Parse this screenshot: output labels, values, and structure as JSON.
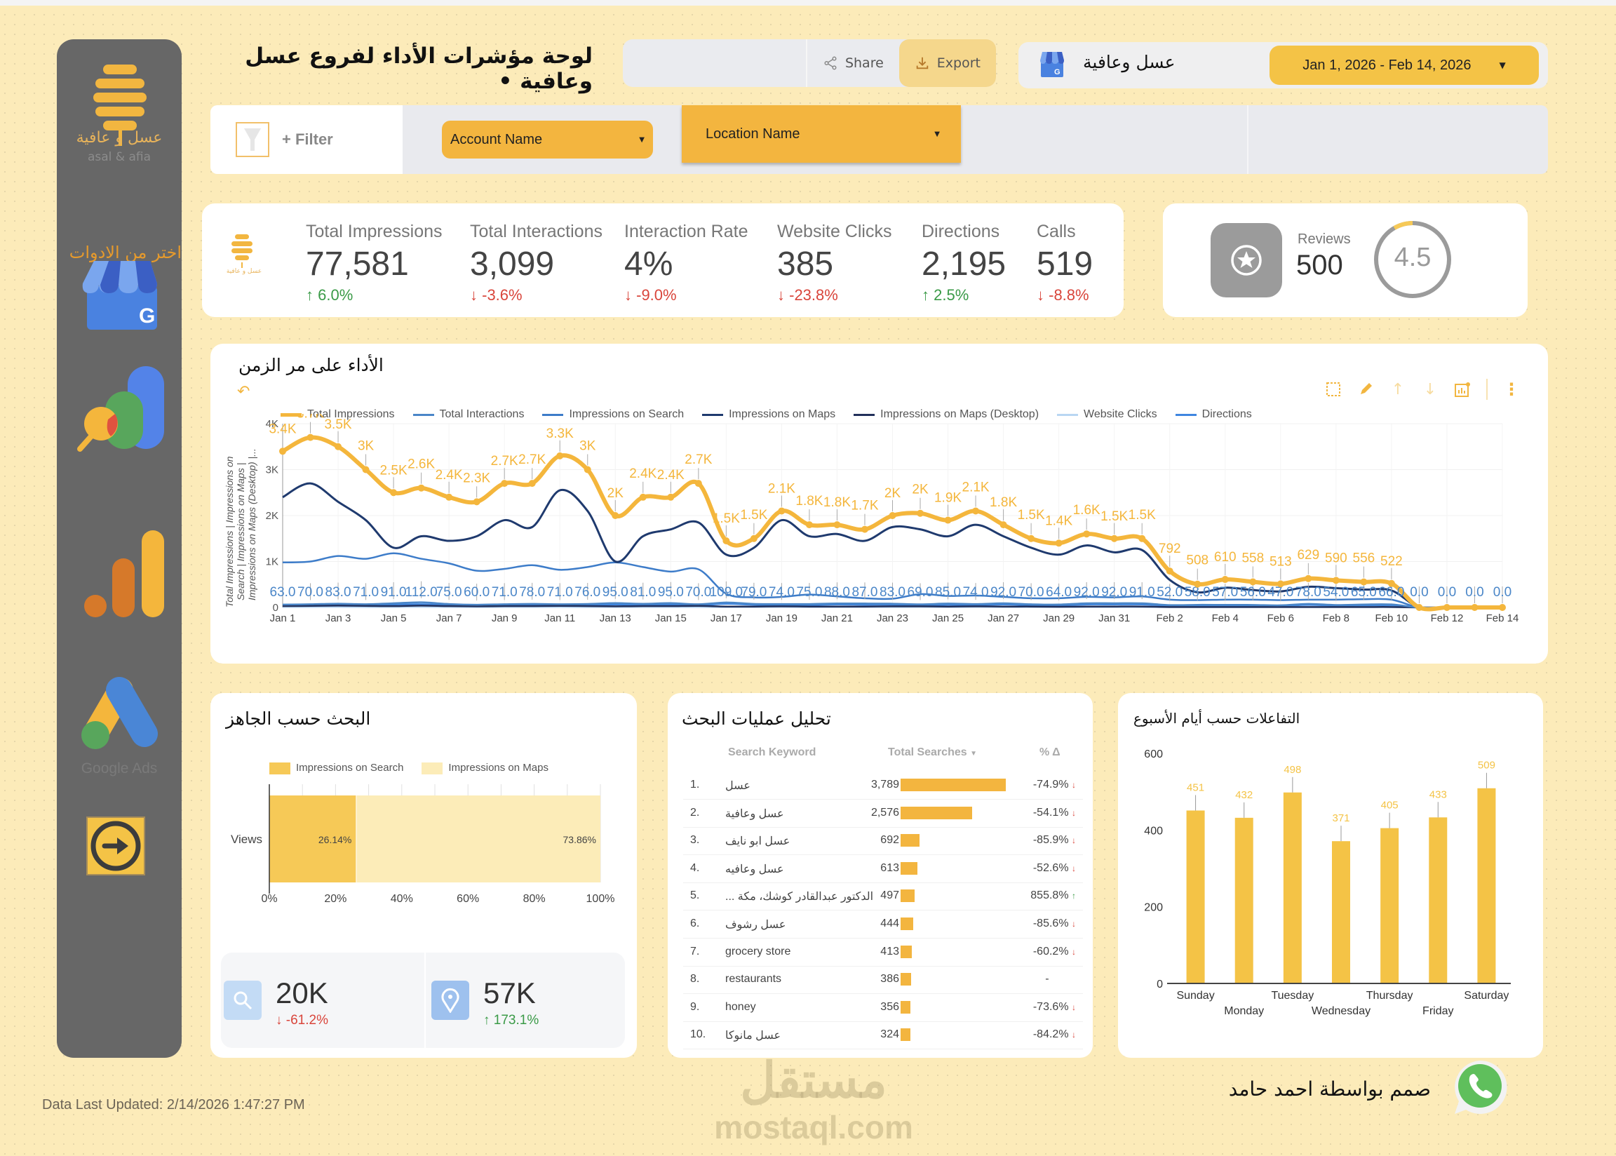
{
  "header": {
    "title": "لوحة مؤشرات الأداء لفروع عسل وعافية •",
    "share_label": "Share",
    "export_label": "Export",
    "brand_name": "عسل وعافية",
    "date_range": "Jan 1, 2026 - Feb 14, 2026"
  },
  "sidebar": {
    "logo_ar": "عسل و عافية",
    "logo_en": "asal & afia",
    "tools_label": "اختر من الادوات",
    "tools": [
      {
        "name": "google-business-profile",
        "label": ""
      },
      {
        "name": "looker-studio",
        "label": ""
      },
      {
        "name": "google-analytics",
        "label": ""
      },
      {
        "name": "google-ads",
        "label": "Google Ads"
      },
      {
        "name": "next",
        "label": ""
      }
    ]
  },
  "filters": {
    "filter_label": "+ Filter",
    "account_dropdown": "Account Name",
    "location_dropdown": "Location Name"
  },
  "kpis": [
    {
      "label": "Total Impressions",
      "value": "77,581",
      "delta": "6.0%",
      "direction": "up"
    },
    {
      "label": "Total Interactions",
      "value": "3,099",
      "delta": "-3.6%",
      "direction": "down"
    },
    {
      "label": "Interaction Rate",
      "value": "4%",
      "delta": "-9.0%",
      "direction": "down"
    },
    {
      "label": "Website Clicks",
      "value": "385",
      "delta": "-23.8%",
      "direction": "down"
    },
    {
      "label": "Directions",
      "value": "2,195",
      "delta": "2.5%",
      "direction": "up"
    },
    {
      "label": "Calls",
      "value": "519",
      "delta": "-8.8%",
      "direction": "down"
    }
  ],
  "kpi_logo": {
    "ar": "عسل و عافية",
    "en": "asal & afia"
  },
  "reviews": {
    "label": "Reviews",
    "count": "500",
    "rating": "4.5"
  },
  "time_chart": {
    "title": "الأداء على مر الزمن"
  },
  "device_chart": {
    "title": "البحث حسب الجاهز"
  },
  "mini_stats": [
    {
      "icon": "search",
      "value": "20K",
      "delta": "-61.2%",
      "direction": "down"
    },
    {
      "icon": "map-pin",
      "value": "57K",
      "delta": "173.1%",
      "direction": "up"
    }
  ],
  "search_table": {
    "title": "تحليل عمليات البحث",
    "columns": [
      "Search Keyword",
      "Total Searches",
      "% Δ"
    ],
    "rows": [
      {
        "rank": "1.",
        "keyword": "عسل",
        "searches": "3,789",
        "value": 3789,
        "delta": "-74.9%",
        "direction": "down"
      },
      {
        "rank": "2.",
        "keyword": "عسل وعافية",
        "searches": "2,576",
        "value": 2576,
        "delta": "-54.1%",
        "direction": "down"
      },
      {
        "rank": "3.",
        "keyword": "عسل ابو نايف",
        "searches": "692",
        "value": 692,
        "delta": "-85.9%",
        "direction": "down"
      },
      {
        "rank": "4.",
        "keyword": "عسل وعافيه",
        "searches": "613",
        "value": 613,
        "delta": "-52.6%",
        "direction": "down"
      },
      {
        "rank": "5.",
        "keyword": "... الدكتور عبدالقادر كوشك، مكة",
        "searches": "497",
        "value": 497,
        "delta": "855.8%",
        "direction": "up"
      },
      {
        "rank": "6.",
        "keyword": "عسل رشوف",
        "searches": "444",
        "value": 444,
        "delta": "-85.6%",
        "direction": "down"
      },
      {
        "rank": "7.",
        "keyword": "grocery store",
        "searches": "413",
        "value": 413,
        "delta": "-60.2%",
        "direction": "down"
      },
      {
        "rank": "8.",
        "keyword": "restaurants",
        "searches": "386",
        "value": 386,
        "delta": "-",
        "direction": "none"
      },
      {
        "rank": "9.",
        "keyword": "honey",
        "searches": "356",
        "value": 356,
        "delta": "-73.6%",
        "direction": "down"
      },
      {
        "rank": "10.",
        "keyword": "عسل مانوكا",
        "searches": "324",
        "value": 324,
        "delta": "-84.2%",
        "direction": "down"
      }
    ]
  },
  "week_chart": {
    "title": "التفاعلات حسب أيام الأسبوع"
  },
  "footer": {
    "updated": "Data Last Updated: 2/14/2026 1:47:27 PM",
    "designer": "صمم بواسطة احمد حامد",
    "watermark_ar": "مستقل",
    "watermark_en": "mostaql.com"
  },
  "colors": {
    "background": "#fcebb9",
    "accent": "#f3b53f",
    "sidebar": "#676767",
    "up": "#3a9a47",
    "down": "#d9453b",
    "impressions_line": "#f4b63c",
    "maps_line": "#1f3a6e",
    "interactions_line": "#4a86c8"
  },
  "chart_data": [
    {
      "type": "line",
      "title": "الأداء على مر الزمن",
      "xlabel": "",
      "ylabel": "Total Impressions | Impressions on Search | Impressions on Maps | Impressions on Maps (Desktop) |...",
      "ylim": [
        0,
        4000
      ],
      "yticks": [
        "0",
        "1K",
        "2K",
        "3K",
        "4K"
      ],
      "grid": true,
      "legend_position": "top",
      "x_tick_labels": [
        "Jan 1",
        "Jan 3",
        "Jan 5",
        "Jan 7",
        "Jan 9",
        "Jan 11",
        "Jan 13",
        "Jan 15",
        "Jan 17",
        "Jan 19",
        "Jan 21",
        "Jan 23",
        "Jan 25",
        "Jan 27",
        "Jan 29",
        "Jan 31",
        "Feb 2",
        "Feb 4",
        "Feb 6",
        "Feb 8",
        "Feb 10",
        "Feb 12",
        "Feb 14"
      ],
      "x": [
        "Jan 1",
        "Jan 2",
        "Jan 3",
        "Jan 4",
        "Jan 5",
        "Jan 6",
        "Jan 7",
        "Jan 8",
        "Jan 9",
        "Jan 10",
        "Jan 11",
        "Jan 12",
        "Jan 13",
        "Jan 14",
        "Jan 15",
        "Jan 16",
        "Jan 17",
        "Jan 18",
        "Jan 19",
        "Jan 20",
        "Jan 21",
        "Jan 22",
        "Jan 23",
        "Jan 24",
        "Jan 25",
        "Jan 26",
        "Jan 27",
        "Jan 28",
        "Jan 29",
        "Jan 30",
        "Jan 31",
        "Feb 1",
        "Feb 2",
        "Feb 3",
        "Feb 4",
        "Feb 5",
        "Feb 6",
        "Feb 7",
        "Feb 8",
        "Feb 9",
        "Feb 10",
        "Feb 11",
        "Feb 12",
        "Feb 13",
        "Feb 14"
      ],
      "series": [
        {
          "name": "Total Impressions",
          "color": "#f4b63c",
          "labels": [
            "3.4K",
            "3.7K",
            "3.5K",
            "3K",
            "2.5K",
            "2.6K",
            "2.4K",
            "2.3K",
            "2.7K",
            "2.7K",
            "3.3K",
            "3K",
            "2K",
            "2.4K",
            "2.4K",
            "2.7K",
            "1.5K",
            "1.5K",
            "2.1K",
            "1.8K",
            "1.8K",
            "1.7K",
            "2K",
            "2K",
            "1.9K",
            "2.1K",
            "1.8K",
            "1.5K",
            "1.4K",
            "1.6K",
            "1.5K",
            "1.5K",
            "792",
            "508",
            "610",
            "558",
            "513",
            "629",
            "590",
            "556",
            "522",
            "0",
            "0",
            "0",
            "0"
          ],
          "values": [
            3400,
            3700,
            3500,
            3000,
            2500,
            2600,
            2400,
            2300,
            2700,
            2700,
            3300,
            3000,
            2000,
            2400,
            2400,
            2700,
            1450,
            1500,
            2100,
            1800,
            1800,
            1700,
            2000,
            2050,
            1900,
            2100,
            1800,
            1500,
            1400,
            1600,
            1500,
            1500,
            792,
            508,
            610,
            558,
            513,
            629,
            590,
            556,
            522,
            0,
            0,
            0,
            0
          ]
        },
        {
          "name": "Total Interactions",
          "color": "#4a86c8",
          "values": [
            63,
            70,
            83,
            71,
            91,
            112,
            75,
            60,
            71,
            78,
            71,
            76,
            95,
            81,
            95,
            70,
            109,
            79,
            74,
            75,
            88,
            87,
            83,
            69,
            85,
            74,
            92,
            70,
            64,
            92,
            92,
            91,
            52,
            58,
            57,
            56,
            47,
            78,
            54,
            65,
            66,
            0,
            0,
            0,
            0
          ]
        },
        {
          "name": "Impressions on Search",
          "color": "#3d7cc9",
          "values": [
            980,
            1000,
            1120,
            1060,
            1180,
            1060,
            960,
            800,
            840,
            920,
            820,
            880,
            980,
            880,
            780,
            830,
            300,
            220,
            230,
            280,
            240,
            200,
            190,
            290,
            250,
            260,
            230,
            200,
            200,
            230,
            220,
            240,
            170,
            160,
            170,
            170,
            160,
            170,
            170,
            180,
            170,
            0,
            0,
            0,
            0
          ]
        },
        {
          "name": "Impressions on Maps",
          "color": "#1f3a6e",
          "values": [
            2400,
            2700,
            2300,
            1900,
            1300,
            1550,
            1450,
            1550,
            1900,
            1750,
            2550,
            2100,
            1000,
            1550,
            1700,
            1850,
            1150,
            1300,
            1900,
            1550,
            1600,
            1450,
            1750,
            1700,
            1550,
            1800,
            1550,
            1300,
            1150,
            1350,
            1200,
            1250,
            600,
            330,
            430,
            380,
            350,
            450,
            420,
            390,
            370,
            0,
            0,
            0,
            0
          ]
        },
        {
          "name": "Impressions on Maps (Desktop)",
          "color": "#22305a",
          "values": [
            30,
            35,
            40,
            35,
            30,
            40,
            30,
            25,
            30,
            30,
            35,
            30,
            25,
            30,
            30,
            35,
            20,
            20,
            25,
            20,
            20,
            20,
            25,
            25,
            20,
            25,
            20,
            20,
            15,
            20,
            20,
            20,
            10,
            10,
            10,
            10,
            10,
            10,
            10,
            10,
            10,
            0,
            0,
            0,
            0
          ]
        },
        {
          "name": "Website Clicks",
          "color": "#b9d6f2",
          "values": [
            10,
            10,
            12,
            8,
            10,
            12,
            9,
            8,
            9,
            10,
            9,
            8,
            10,
            9,
            9,
            8,
            7,
            8,
            9,
            8,
            8,
            9,
            8,
            9,
            8,
            9,
            8,
            7,
            7,
            8,
            8,
            8,
            6,
            5,
            6,
            5,
            5,
            6,
            5,
            6,
            5,
            0,
            0,
            0,
            0
          ]
        },
        {
          "name": "Directions",
          "color": "#3f86e0",
          "values": [
            50,
            55,
            60,
            55,
            65,
            70,
            55,
            45,
            50,
            55,
            50,
            55,
            65,
            60,
            65,
            50,
            80,
            60,
            55,
            55,
            65,
            60,
            60,
            50,
            60,
            55,
            65,
            50,
            45,
            65,
            65,
            65,
            40,
            40,
            40,
            40,
            35,
            55,
            40,
            45,
            45,
            0,
            0,
            0,
            0
          ]
        }
      ]
    },
    {
      "type": "bar",
      "orientation": "horizontal",
      "stacked": true,
      "title": "البحث حسب الجاهز",
      "categories": [
        "Views"
      ],
      "series": [
        {
          "name": "Impressions on Search",
          "values": [
            26.14
          ],
          "color": "#f6c957"
        },
        {
          "name": "Impressions on Maps",
          "values": [
            73.86
          ],
          "color": "#fcecb8"
        }
      ],
      "xlim": [
        0,
        100
      ],
      "xticks": [
        "0%",
        "20%",
        "40%",
        "60%",
        "80%",
        "100%"
      ],
      "legend_position": "top"
    },
    {
      "type": "table",
      "title": "تحليل عمليات البحث",
      "columns": [
        "Search Keyword",
        "Total Searches",
        "% Δ"
      ],
      "rows": [
        [
          "عسل",
          3789,
          "-74.9%"
        ],
        [
          "عسل وعافية",
          2576,
          "-54.1%"
        ],
        [
          "عسل ابو نايف",
          692,
          "-85.9%"
        ],
        [
          "عسل وعافيه",
          613,
          "-52.6%"
        ],
        [
          "... الدكتور عبدالقادر كوشك، مكة",
          497,
          "855.8%"
        ],
        [
          "عسل رشوف",
          444,
          "-85.6%"
        ],
        [
          "grocery store",
          413,
          "-60.2%"
        ],
        [
          "restaurants",
          386,
          "-"
        ],
        [
          "honey",
          356,
          "-73.6%"
        ],
        [
          "عسل مانوكا",
          324,
          "-84.2%"
        ]
      ]
    },
    {
      "type": "bar",
      "title": "التفاعلات حسب أيام الأسبوع",
      "categories": [
        "Sunday",
        "Monday",
        "Tuesday",
        "Wednesday",
        "Thursday",
        "Friday",
        "Saturday"
      ],
      "values": [
        451,
        432,
        498,
        371,
        405,
        433,
        509
      ],
      "ylim": [
        0,
        600
      ],
      "yticks": [
        "0",
        "200",
        "400",
        "600"
      ],
      "xlabel": "",
      "ylabel": ""
    }
  ]
}
